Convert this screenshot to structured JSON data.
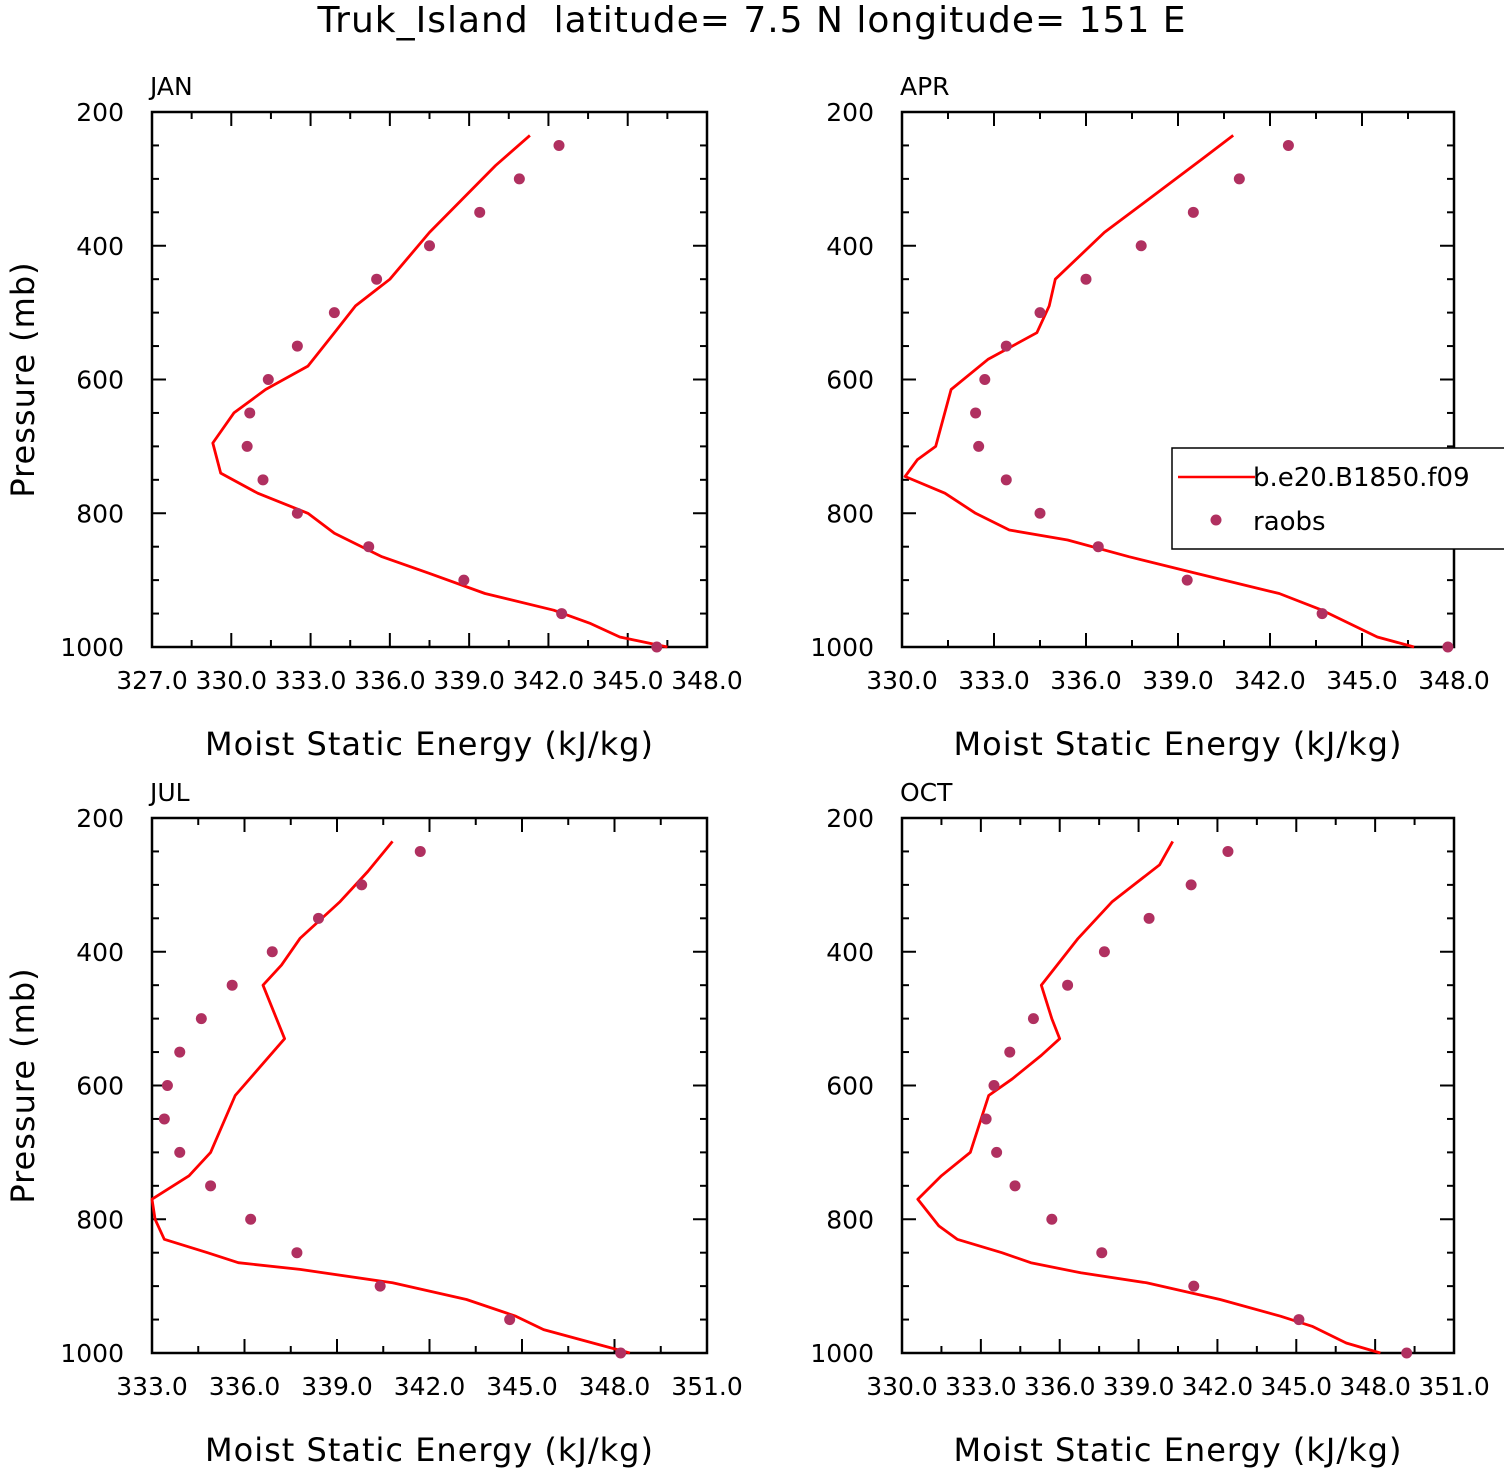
{
  "figure": {
    "title": "Truk_Island  latitude= 7.5 N longitude= 151 E"
  },
  "legend": {
    "model_label": "b.e20.B1850.f09",
    "obs_label": "raobs"
  },
  "colors": {
    "model_line": "#ff0000",
    "obs_marker": "#b03060",
    "axis": "#000000"
  },
  "chart_data": [
    {
      "type": "line",
      "panel": "JAN",
      "title": "JAN",
      "xlabel": "Moist Static Energy (kJ/kg)",
      "ylabel": "Pressure (mb)",
      "xlim": [
        327,
        348
      ],
      "ylim": [
        1000,
        200
      ],
      "xticks": [
        327,
        330,
        333,
        336,
        339,
        342,
        345,
        348
      ],
      "xtick_labels": [
        "327.0",
        "330.0",
        "333.0",
        "336.0",
        "339.0",
        "342.0",
        "345.0",
        "348.0"
      ],
      "yticks": [
        200,
        400,
        600,
        800,
        1000
      ],
      "ytick_labels": [
        "200",
        "400",
        "600",
        "800",
        "1000"
      ],
      "grid": false,
      "series": [
        {
          "name": "b.e20.B1850.f09",
          "style": "line",
          "x": [
            346.5,
            344.7,
            343.6,
            342.2,
            339.6,
            337.5,
            335.7,
            333.9,
            332.9,
            331.0,
            329.6,
            329.3,
            330.1,
            331.3,
            332.9,
            333.9,
            334.7,
            336.0,
            337.5,
            340.0,
            341.3
          ],
          "y": [
            1000,
            985,
            965,
            945,
            920,
            890,
            865,
            830,
            800,
            770,
            740,
            695,
            650,
            615,
            580,
            530,
            490,
            450,
            380,
            280,
            235
          ]
        },
        {
          "name": "raobs",
          "style": "points",
          "x": [
            346.1,
            342.5,
            338.8,
            335.2,
            332.5,
            331.2,
            330.6,
            330.7,
            331.4,
            332.5,
            333.9,
            335.5,
            337.5,
            339.4,
            340.9,
            342.4
          ],
          "y": [
            1000,
            950,
            900,
            850,
            800,
            750,
            700,
            650,
            600,
            550,
            500,
            450,
            400,
            350,
            300,
            250
          ]
        }
      ]
    },
    {
      "type": "line",
      "panel": "APR",
      "title": "APR",
      "xlabel": "Moist Static Energy (kJ/kg)",
      "ylabel": "",
      "xlim": [
        330,
        348
      ],
      "ylim": [
        1000,
        200
      ],
      "xticks": [
        330,
        333,
        336,
        339,
        342,
        345,
        348
      ],
      "xtick_labels": [
        "330.0",
        "333.0",
        "336.0",
        "339.0",
        "342.0",
        "345.0",
        "348.0"
      ],
      "yticks": [
        200,
        400,
        600,
        800,
        1000
      ],
      "ytick_labels": [
        "200",
        "400",
        "600",
        "800",
        "1000"
      ],
      "grid": false,
      "series": [
        {
          "name": "b.e20.B1850.f09",
          "style": "line",
          "x": [
            346.7,
            345.5,
            344.6,
            343.7,
            342.3,
            339.6,
            337.4,
            335.4,
            333.5,
            332.4,
            331.4,
            330.1,
            330.5,
            331.1,
            331.6,
            332.8,
            334.4,
            334.8,
            335.0,
            336.6,
            339.8,
            340.8
          ],
          "y": [
            1000,
            985,
            965,
            945,
            920,
            890,
            865,
            840,
            825,
            800,
            770,
            745,
            720,
            700,
            615,
            570,
            530,
            490,
            450,
            380,
            270,
            235
          ]
        },
        {
          "name": "raobs",
          "style": "points",
          "x": [
            347.8,
            343.7,
            339.3,
            336.4,
            334.5,
            333.4,
            332.5,
            332.4,
            332.7,
            333.4,
            334.5,
            336.0,
            337.8,
            339.5,
            341.0,
            342.6
          ],
          "y": [
            1000,
            950,
            900,
            850,
            800,
            750,
            700,
            650,
            600,
            550,
            500,
            450,
            400,
            350,
            300,
            250
          ]
        }
      ]
    },
    {
      "type": "line",
      "panel": "JUL",
      "title": "JUL",
      "xlabel": "Moist Static Energy (kJ/kg)",
      "ylabel": "Pressure (mb)",
      "xlim": [
        333,
        351
      ],
      "ylim": [
        1000,
        200
      ],
      "xticks": [
        333,
        336,
        339,
        342,
        345,
        348,
        351
      ],
      "xtick_labels": [
        "333.0",
        "336.0",
        "339.0",
        "342.0",
        "345.0",
        "348.0",
        "351.0"
      ],
      "yticks": [
        200,
        400,
        600,
        800,
        1000
      ],
      "ytick_labels": [
        "200",
        "400",
        "600",
        "800",
        "1000"
      ],
      "grid": false,
      "series": [
        {
          "name": "b.e20.B1850.f09",
          "style": "line",
          "x": [
            348.5,
            347.3,
            345.7,
            344.8,
            343.2,
            340.8,
            337.8,
            335.8,
            334.8,
            333.4,
            333.1,
            333.0,
            334.2,
            334.9,
            335.7,
            337.3,
            336.6,
            337.2,
            337.8,
            339.1,
            340.0,
            340.8
          ],
          "y": [
            1000,
            985,
            965,
            945,
            920,
            895,
            875,
            865,
            850,
            830,
            800,
            770,
            735,
            700,
            615,
            530,
            450,
            420,
            380,
            325,
            280,
            235
          ]
        },
        {
          "name": "raobs",
          "style": "points",
          "x": [
            348.2,
            344.6,
            340.4,
            337.7,
            336.2,
            334.9,
            333.9,
            333.4,
            333.5,
            333.9,
            334.6,
            335.6,
            336.9,
            338.4,
            339.8,
            341.7
          ],
          "y": [
            1000,
            950,
            900,
            850,
            800,
            750,
            700,
            650,
            600,
            550,
            500,
            450,
            400,
            350,
            300,
            250
          ]
        }
      ]
    },
    {
      "type": "line",
      "panel": "OCT",
      "title": "OCT",
      "xlabel": "Moist Static Energy (kJ/kg)",
      "ylabel": "",
      "xlim": [
        330,
        351
      ],
      "ylim": [
        1000,
        200
      ],
      "xticks": [
        330,
        333,
        336,
        339,
        342,
        345,
        348,
        351
      ],
      "xtick_labels": [
        "330.0",
        "333.0",
        "336.0",
        "339.0",
        "342.0",
        "345.0",
        "348.0",
        "351.0"
      ],
      "yticks": [
        200,
        400,
        600,
        800,
        1000
      ],
      "ytick_labels": [
        "200",
        "400",
        "600",
        "800",
        "1000"
      ],
      "grid": false,
      "series": [
        {
          "name": "b.e20.B1850.f09",
          "style": "line",
          "x": [
            348.2,
            346.9,
            345.6,
            344.4,
            342.1,
            339.3,
            336.8,
            334.9,
            333.8,
            332.1,
            331.4,
            330.6,
            331.5,
            332.6,
            333.3,
            334.2,
            335.3,
            336.0,
            335.7,
            335.3,
            336.7,
            338.0,
            339.8,
            340.3
          ],
          "y": [
            1000,
            985,
            960,
            945,
            920,
            895,
            880,
            865,
            850,
            830,
            810,
            770,
            735,
            700,
            615,
            590,
            555,
            530,
            500,
            450,
            380,
            325,
            270,
            235
          ]
        },
        {
          "name": "raobs",
          "style": "points",
          "x": [
            349.2,
            345.1,
            341.1,
            337.6,
            335.7,
            334.3,
            333.6,
            333.2,
            333.5,
            334.1,
            335.0,
            336.3,
            337.7,
            339.4,
            341.0,
            342.4
          ],
          "y": [
            1000,
            950,
            900,
            850,
            800,
            750,
            700,
            650,
            600,
            550,
            500,
            450,
            400,
            350,
            300,
            250
          ]
        }
      ]
    }
  ]
}
